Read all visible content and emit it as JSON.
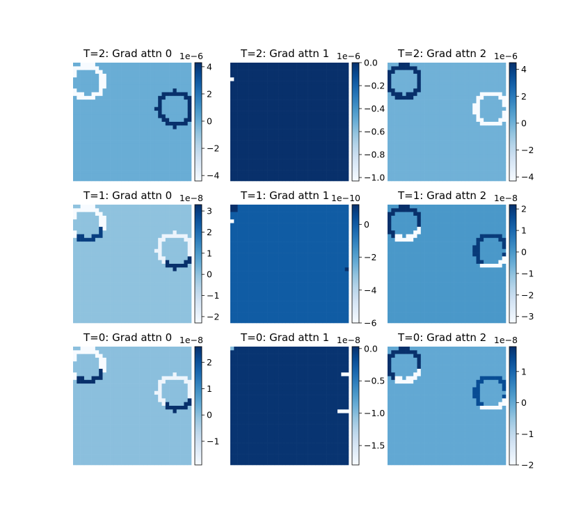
{
  "chart_data": [
    {
      "type": "heatmap",
      "title": "T=2: Grad attn 0",
      "colorbar_exponent": "1e−6",
      "colorbar_ticks": [
        "4",
        "2",
        "0",
        "−2",
        "−4"
      ],
      "colorbar_values": [
        4,
        2,
        0,
        -2,
        -4
      ],
      "vmin": -4.4,
      "vmax": 4.3,
      "background": 0.0,
      "colormap": "Blues",
      "rings": [
        {
          "cx": 0.12,
          "cy": 0.16,
          "r": 0.135,
          "value": -4.4,
          "clip_left": true
        },
        {
          "cx": 0.86,
          "cy": 0.39,
          "r": 0.135,
          "value": 4.3,
          "gap_right": true
        }
      ]
    },
    {
      "type": "heatmap",
      "title": "T=2: Grad attn 1",
      "colorbar_exponent": "1e−6",
      "colorbar_ticks": [
        "0.0",
        "−0.2",
        "−0.4",
        "−0.6",
        "−0.8",
        "−1.0"
      ],
      "colorbar_values": [
        0.0,
        -0.2,
        -0.4,
        -0.6,
        -0.8,
        -1.0
      ],
      "vmin": -1.03,
      "vmax": 0.0,
      "background": 0.0,
      "colormap": "Blues",
      "rings": [],
      "spots": [
        {
          "x": 0.0,
          "y": 0.12,
          "w": 0.03,
          "h": 0.03,
          "value": -1.03
        }
      ]
    },
    {
      "type": "heatmap",
      "title": "T=2: Grad attn 2",
      "colorbar_exponent": "1e−6",
      "colorbar_ticks": [
        "4",
        "2",
        "0",
        "−2",
        "−4"
      ],
      "colorbar_values": [
        4,
        2,
        0,
        -2,
        -4
      ],
      "vmin": -4.3,
      "vmax": 4.5,
      "background": 0.0,
      "colormap": "Blues",
      "rings": [
        {
          "cx": 0.14,
          "cy": 0.16,
          "r": 0.13,
          "value": 4.5
        },
        {
          "cx": 0.88,
          "cy": 0.39,
          "r": 0.13,
          "value": -4.3
        }
      ]
    },
    {
      "type": "heatmap",
      "title": "T=1: Grad attn 0",
      "colorbar_exponent": "1e−8",
      "colorbar_ticks": [
        "3",
        "2",
        "1",
        "0",
        "−1",
        "−2"
      ],
      "colorbar_values": [
        3,
        2,
        1,
        0,
        -1,
        -2
      ],
      "vmin": -2.3,
      "vmax": 3.3,
      "background": 0.0,
      "colormap": "Blues",
      "rings": [
        {
          "cx": 0.12,
          "cy": 0.16,
          "r": 0.135,
          "value": -2.3,
          "mixed": 3.0
        },
        {
          "cx": 0.86,
          "cy": 0.39,
          "r": 0.135,
          "value": -2.0,
          "mixed": 3.3
        }
      ]
    },
    {
      "type": "heatmap",
      "title": "T=1: Grad attn 1",
      "colorbar_exponent": "1e−10",
      "colorbar_ticks": [
        "0",
        "−2",
        "−4",
        "−6"
      ],
      "colorbar_values": [
        0,
        -2,
        -4,
        -6
      ],
      "vmin": -6.0,
      "vmax": 1.2,
      "background": 0.0,
      "colormap": "Blues",
      "rings": [],
      "spots": [
        {
          "x": 0.0,
          "y": 0.12,
          "w": 0.03,
          "h": 0.03,
          "value": -6.0
        },
        {
          "x": 0.0,
          "y": 0.0,
          "w": 0.06,
          "h": 0.05,
          "value": 1.2
        },
        {
          "x": 0.96,
          "y": 0.53,
          "w": 0.04,
          "h": 0.03,
          "value": 1.2
        }
      ]
    },
    {
      "type": "heatmap",
      "title": "T=1: Grad attn 2",
      "colorbar_exponent": "1e−8",
      "colorbar_ticks": [
        "2",
        "1",
        "0",
        "−1",
        "−2",
        "−3"
      ],
      "colorbar_values": [
        2,
        1,
        0,
        -1,
        -2,
        -3
      ],
      "vmin": -3.3,
      "vmax": 2.2,
      "background": 0.0,
      "colormap": "Blues",
      "rings": [
        {
          "cx": 0.14,
          "cy": 0.16,
          "r": 0.13,
          "value": 2.2,
          "mixed": -3.3
        },
        {
          "cx": 0.88,
          "cy": 0.39,
          "r": 0.13,
          "value": 2.0,
          "mixed": -3.3
        }
      ]
    },
    {
      "type": "heatmap",
      "title": "T=0: Grad attn 0",
      "colorbar_exponent": "1e−8",
      "colorbar_ticks": [
        "2",
        "1",
        "0",
        "−1"
      ],
      "colorbar_values": [
        2,
        1,
        0,
        -1
      ],
      "vmin": -1.9,
      "vmax": 2.6,
      "background": 0.0,
      "colormap": "Blues",
      "rings": [
        {
          "cx": 0.12,
          "cy": 0.16,
          "r": 0.135,
          "value": -1.9,
          "mixed": 2.6
        },
        {
          "cx": 0.86,
          "cy": 0.39,
          "r": 0.135,
          "value": -1.7,
          "mixed": 2.6
        }
      ]
    },
    {
      "type": "heatmap",
      "title": "T=0: Grad attn 1",
      "colorbar_exponent": "1e−8",
      "colorbar_ticks": [
        "0.0",
        "−0.5",
        "−1.0",
        "−1.5"
      ],
      "colorbar_values": [
        0.0,
        -0.5,
        -1.0,
        -1.5
      ],
      "vmin": -1.8,
      "vmax": 0.03,
      "background": 0.0,
      "colormap": "Blues",
      "rings": [],
      "spots": [
        {
          "x": 0.0,
          "y": 0.0,
          "w": 0.04,
          "h": 0.03,
          "value": -1.0
        },
        {
          "x": 0.94,
          "y": 0.23,
          "w": 0.06,
          "h": 0.03,
          "value": -1.8
        },
        {
          "x": 0.92,
          "y": 0.54,
          "w": 0.08,
          "h": 0.03,
          "value": -1.8
        }
      ]
    },
    {
      "type": "heatmap",
      "title": "T=0: Grad attn 2",
      "colorbar_exponent": "1e−8",
      "colorbar_ticks": [
        "1",
        "0",
        "−1",
        "−2"
      ],
      "colorbar_values": [
        1,
        0,
        -1,
        -2
      ],
      "vmin": -2.0,
      "vmax": 1.8,
      "background": 0.0,
      "colormap": "Blues",
      "rings": [
        {
          "cx": 0.14,
          "cy": 0.16,
          "r": 0.13,
          "value": 1.8,
          "mixed": -2.0
        },
        {
          "cx": 0.88,
          "cy": 0.39,
          "r": 0.13,
          "value": 1.4,
          "mixed": -2.0
        }
      ]
    }
  ]
}
